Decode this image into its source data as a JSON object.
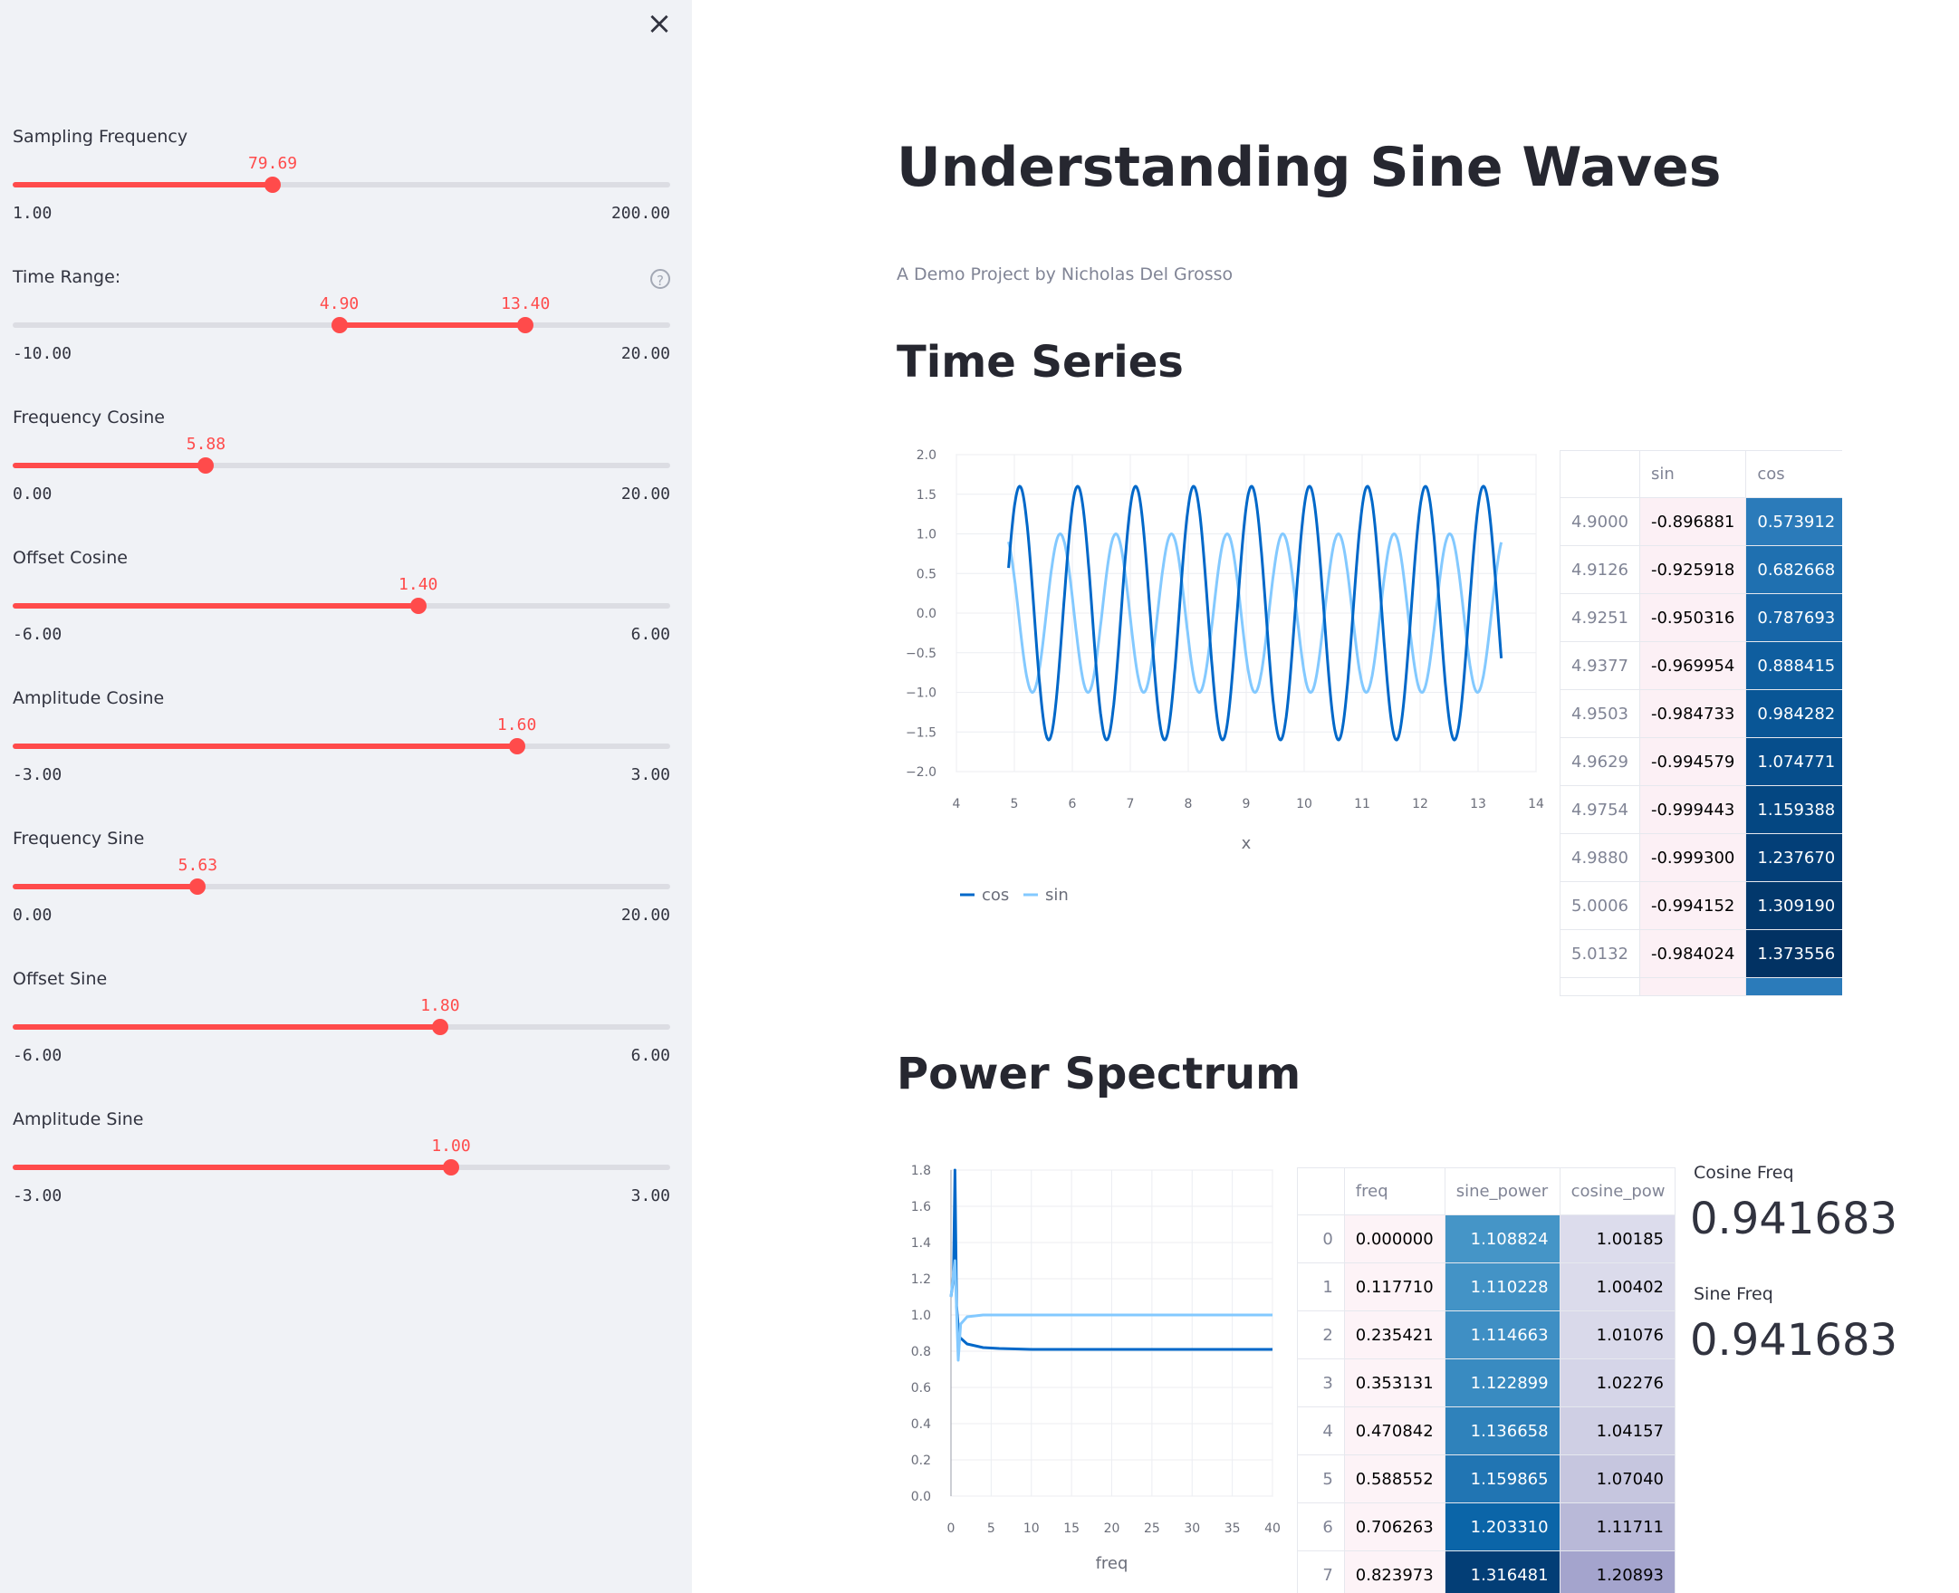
{
  "sidebar": {
    "close_icon": "×",
    "sliders": [
      {
        "label": "Sampling Frequency",
        "min": "1.00",
        "max": "200.00",
        "values": [
          "79.69"
        ],
        "fractions": [
          0.3954
        ],
        "has_help": false
      },
      {
        "label": "Time Range:",
        "min": "-10.00",
        "max": "20.00",
        "values": [
          "4.90",
          "13.40"
        ],
        "fractions": [
          0.4967,
          0.78
        ],
        "has_help": true
      },
      {
        "label": "Frequency Cosine",
        "min": "0.00",
        "max": "20.00",
        "values": [
          "5.88"
        ],
        "fractions": [
          0.294
        ],
        "has_help": false
      },
      {
        "label": "Offset Cosine",
        "min": "-6.00",
        "max": "6.00",
        "values": [
          "1.40"
        ],
        "fractions": [
          0.6167
        ],
        "has_help": false
      },
      {
        "label": "Amplitude Cosine",
        "min": "-3.00",
        "max": "3.00",
        "values": [
          "1.60"
        ],
        "fractions": [
          0.7667
        ],
        "has_help": false
      },
      {
        "label": "Frequency Sine",
        "min": "0.00",
        "max": "20.00",
        "values": [
          "5.63"
        ],
        "fractions": [
          0.2815
        ],
        "has_help": false
      },
      {
        "label": "Offset Sine",
        "min": "-6.00",
        "max": "6.00",
        "values": [
          "1.80"
        ],
        "fractions": [
          0.65
        ],
        "has_help": false
      },
      {
        "label": "Amplitude Sine",
        "min": "-3.00",
        "max": "3.00",
        "values": [
          "1.00"
        ],
        "fractions": [
          0.6667
        ],
        "has_help": false
      }
    ]
  },
  "main": {
    "title": "Understanding Sine Waves",
    "subtitle": "A Demo Project by Nicholas Del Grosso",
    "section_time": "Time Series",
    "section_power": "Power Spectrum"
  },
  "colors": {
    "accent": "#ff4b4b",
    "cos": "#0068c9",
    "sin": "#83c9ff"
  },
  "chart_data": [
    {
      "type": "line",
      "xlabel": "x",
      "ylabel": "",
      "xlim": [
        4,
        14
      ],
      "ylim": [
        -2.0,
        2.0
      ],
      "xticks": [
        "4",
        "5",
        "6",
        "7",
        "8",
        "9",
        "10",
        "11",
        "12",
        "13",
        "14"
      ],
      "yticks": [
        "2.0",
        "1.5",
        "1.0",
        "0.5",
        "0.0",
        "−0.5",
        "−1.0",
        "−1.5",
        "−2.0"
      ],
      "legend": "bottom-left",
      "x_range": [
        4.9,
        13.4
      ],
      "series": [
        {
          "name": "cos",
          "color": "#0068c9",
          "freq_hz": 1.0,
          "amplitude": 1.6,
          "phase": 1.4,
          "offset": 0.0,
          "start": 0.57
        },
        {
          "name": "sin",
          "color": "#83c9ff",
          "freq_hz": 1.0,
          "amplitude": 1.0,
          "phase": 1.8,
          "offset": 0.0,
          "start": -0.9
        }
      ]
    },
    {
      "type": "line",
      "xlabel": "freq",
      "ylabel": "",
      "xlim": [
        0,
        40
      ],
      "ylim": [
        0.0,
        1.8
      ],
      "xticks": [
        "0",
        "5",
        "10",
        "15",
        "20",
        "25",
        "30",
        "35",
        "40"
      ],
      "yticks": [
        "1.8",
        "1.6",
        "1.4",
        "1.2",
        "1.0",
        "0.8",
        "0.6",
        "0.4",
        "0.2",
        "0.0"
      ],
      "series": [
        {
          "name": "cosine_power",
          "color": "#0068c9",
          "x": [
            0,
            0.3,
            0.5,
            0.7,
            1,
            2,
            4,
            6,
            10,
            20,
            40
          ],
          "y": [
            1.1,
            1.2,
            1.8,
            1.05,
            0.88,
            0.84,
            0.82,
            0.815,
            0.81,
            0.81,
            0.81
          ]
        },
        {
          "name": "sine_power",
          "color": "#83c9ff",
          "x": [
            0,
            0.5,
            0.9,
            1.2,
            2,
            4,
            8,
            20,
            40
          ],
          "y": [
            1.1,
            1.3,
            0.75,
            0.95,
            0.99,
            1.0,
            1.0,
            1.0,
            1.0
          ]
        }
      ]
    }
  ],
  "time_table": {
    "columns": [
      "",
      "sin",
      "cos"
    ],
    "rows": [
      [
        "4.9000",
        "-0.896881",
        "0.573912"
      ],
      [
        "4.9126",
        "-0.925918",
        "0.682668"
      ],
      [
        "4.9251",
        "-0.950316",
        "0.787693"
      ],
      [
        "4.9377",
        "-0.969954",
        "0.888415"
      ],
      [
        "4.9503",
        "-0.984733",
        "0.984282"
      ],
      [
        "4.9629",
        "-0.994579",
        "1.074771"
      ],
      [
        "4.9754",
        "-0.999443",
        "1.159388"
      ],
      [
        "4.9880",
        "-0.999300",
        "1.237670"
      ],
      [
        "5.0006",
        "-0.994152",
        "1.309190"
      ],
      [
        "5.0132",
        "-0.984024",
        "1.373556"
      ]
    ],
    "cos_colors": [
      "#2b7bba",
      "#1f70b0",
      "#1766a8",
      "#0f5e9f",
      "#095696",
      "#064e8c",
      "#044782",
      "#033f78",
      "#02386c",
      "#023263"
    ],
    "sin_color": "#fcf0f5"
  },
  "power_table": {
    "columns": [
      "",
      "freq",
      "sine_power",
      "cosine_pow"
    ],
    "rows": [
      [
        "0",
        "0.000000",
        "1.108824",
        "1.00185"
      ],
      [
        "1",
        "0.117710",
        "1.110228",
        "1.00402"
      ],
      [
        "2",
        "0.235421",
        "1.114663",
        "1.01076"
      ],
      [
        "3",
        "0.353131",
        "1.122899",
        "1.02276"
      ],
      [
        "4",
        "0.470842",
        "1.136658",
        "1.04157"
      ],
      [
        "5",
        "0.588552",
        "1.159865",
        "1.07040"
      ],
      [
        "6",
        "0.706263",
        "1.203310",
        "1.11711"
      ],
      [
        "7",
        "0.823973",
        "1.316481",
        "1.20893"
      ]
    ],
    "freq_color": "#fdf3f7",
    "sine_colors": [
      "#4595c7",
      "#4393c6",
      "#3f8fc4",
      "#398bc1",
      "#2f82bb",
      "#2175b3",
      "#0b65a8",
      "#033e76"
    ],
    "cos_colors": [
      "#dcdcec",
      "#dbdbeb",
      "#d9d9ea",
      "#d5d5e8",
      "#cfcfe4",
      "#c6c6df",
      "#b9b9d8",
      "#a4a4cd"
    ]
  },
  "metrics": [
    {
      "label": "Cosine Freq",
      "value": "0.941683"
    },
    {
      "label": "Sine Freq",
      "value": "0.941683"
    }
  ]
}
